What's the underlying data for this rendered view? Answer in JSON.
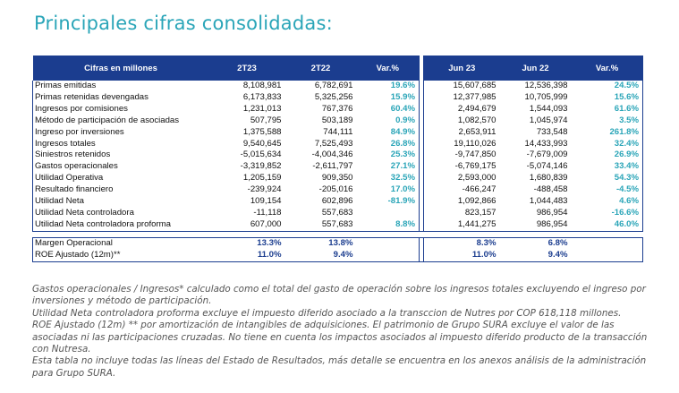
{
  "title": "Principales cifras consolidadas:",
  "table": {
    "headers": [
      "Cifras en millones",
      "2T23",
      "2T22",
      "Var.%",
      "Jun 23",
      "Jun 22",
      "Var.%"
    ],
    "rows": [
      [
        "Primas emitidas",
        "8,108,981",
        "6,782,691",
        "19.6%",
        "15,607,685",
        "12,536,398",
        "24.5%"
      ],
      [
        "Primas retenidas devengadas",
        "6,173,833",
        "5,325,256",
        "15.9%",
        "12,377,985",
        "10,705,999",
        "15.6%"
      ],
      [
        "Ingresos por comisiones",
        "1,231,013",
        "767,376",
        "60.4%",
        "2,494,679",
        "1,544,093",
        "61.6%"
      ],
      [
        "Método de participación de asociadas",
        "507,795",
        "503,189",
        "0.9%",
        "1,082,570",
        "1,045,974",
        "3.5%"
      ],
      [
        "Ingreso por inversiones",
        "1,375,588",
        "744,111",
        "84.9%",
        "2,653,911",
        "733,548",
        "261.8%"
      ],
      [
        "Ingresos totales",
        "9,540,645",
        "7,525,493",
        "26.8%",
        "19,110,026",
        "14,433,993",
        "32.4%"
      ],
      [
        "Siniestros retenidos",
        "-5,015,634",
        "-4,004,346",
        "25.3%",
        "-9,747,850",
        "-7,679,009",
        "26.9%"
      ],
      [
        "Gastos operacionales",
        "-3,319,852",
        "-2,611,797",
        "27.1%",
        "-6,769,175",
        "-5,074,146",
        "33.4%"
      ],
      [
        "Utilidad Operativa",
        "1,205,159",
        "909,350",
        "32.5%",
        "2,593,000",
        "1,680,839",
        "54.3%"
      ],
      [
        "Resultado financiero",
        "-239,924",
        "-205,016",
        "17.0%",
        "-466,247",
        "-488,458",
        "-4.5%"
      ],
      [
        "Utilidad Neta",
        "109,154",
        "602,896",
        "-81.9%",
        "1,092,866",
        "1,044,483",
        "4.6%"
      ],
      [
        "Utilidad Neta controladora",
        "-11,118",
        "557,683",
        "",
        "823,157",
        "986,954",
        "-16.6%"
      ],
      [
        "Utilidad Neta controladora proforma",
        "607,000",
        "557,683",
        "8.8%",
        "1,441,275",
        "986,954",
        "46.0%"
      ]
    ],
    "margins": [
      [
        "Margen Operacional",
        "13.3%",
        "13.8%",
        "",
        "8.3%",
        "6.8%",
        ""
      ],
      [
        "ROE Ajustado (12m)**",
        "11.0%",
        "9.4%",
        "",
        "11.0%",
        "9.4%",
        ""
      ]
    ]
  },
  "notes": [
    "Gastos operacionales / Ingresos* calculado como el total del gasto de operación sobre los ingresos totales excluyendo el ingreso por inversiones y método de participación.",
    "Utilidad Neta controladora proforma excluye el impuesto diferido asociado a la transccion de Nutres por COP 618,118 millones.",
    "ROE Ajustado (12m) ** por amortización de intangibles de adquisiciones. El patrimonio de Grupo SURA excluye el valor de las asociadas ni las participaciones cruzadas. No tiene en cuenta los impactos asociados al impuesto diferido producto de la transacción con Nutresa.",
    "Esta tabla no incluye todas las líneas del Estado de Resultados, más detalle se encuentra en los anexos análisis de la administración para Grupo SURA."
  ],
  "colors": {
    "title": "#2aa5b8",
    "header_bg": "#1b3d8f",
    "var_text": "#2aa5b8"
  }
}
